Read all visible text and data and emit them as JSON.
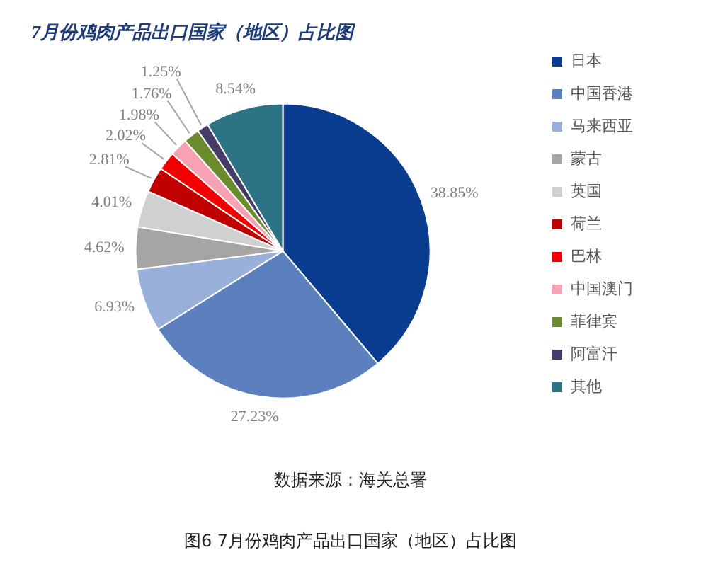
{
  "chart_data": {
    "type": "pie",
    "title": "7月份鸡肉产品出口国家（地区）占比图",
    "categories": [
      "日本",
      "中国香港",
      "马来西亚",
      "蒙古",
      "英国",
      "荷兰",
      "巴林",
      "中国澳门",
      "菲律宾",
      "阿富汗",
      "其他"
    ],
    "values": [
      38.85,
      27.23,
      6.93,
      4.62,
      4.01,
      2.81,
      2.02,
      1.98,
      1.76,
      1.25,
      8.54
    ],
    "colors": [
      "#0a3d8f",
      "#5b80bd",
      "#98b0da",
      "#a5a5a5",
      "#d0d0d0",
      "#c00000",
      "#f50000",
      "#f7a1b4",
      "#6a8a2e",
      "#473b68",
      "#2c7385"
    ],
    "value_labels": [
      "38.85%",
      "27.23%",
      "6.93%",
      "4.62%",
      "4.01%",
      "2.81%",
      "2.02%",
      "1.98%",
      "1.76%",
      "1.25%",
      "8.54%"
    ],
    "legend": "right",
    "annotations": [
      "数据来源：海关总署",
      "图6 7月份鸡肉产品出口国家（地区）占比图"
    ]
  }
}
